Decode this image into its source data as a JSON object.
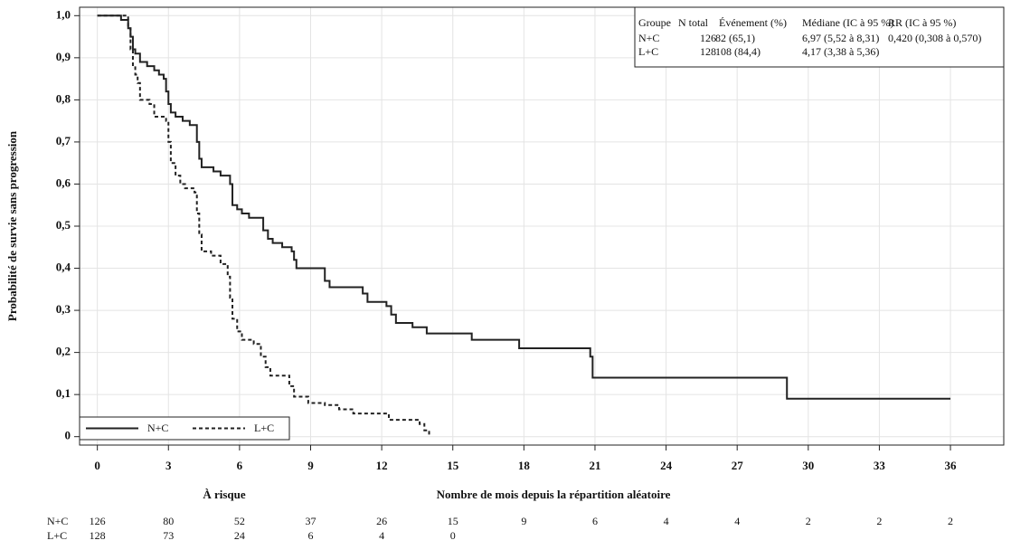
{
  "chart_data": {
    "type": "line",
    "step": "post",
    "ylabel": "Probabilité de survie sans progression",
    "xlabel": "Nombre de mois depuis la répartition aléatoire",
    "xlim": [
      -0.75,
      38.25
    ],
    "ylim": [
      -0.02,
      1.02
    ],
    "xticks": [
      0,
      3,
      6,
      9,
      12,
      15,
      18,
      21,
      24,
      27,
      30,
      33,
      36
    ],
    "yticks": [
      {
        "value": 1,
        "label": "1,0"
      },
      {
        "value": 0.9,
        "label": "0,9"
      },
      {
        "value": 0.8,
        "label": "0,8"
      },
      {
        "value": 0.7,
        "label": "0,7"
      },
      {
        "value": 0.6,
        "label": "0,6"
      },
      {
        "value": 0.5,
        "label": "0,5"
      },
      {
        "value": 0.4,
        "label": "0,4"
      },
      {
        "value": 0.3,
        "label": "0,3"
      },
      {
        "value": 0.2,
        "label": "0,2"
      },
      {
        "value": 0.1,
        "label": "0,1"
      },
      0
    ],
    "grid": true,
    "legend": "lower left",
    "series": [
      {
        "name": "N+C",
        "color": "#222222",
        "dash": "solid",
        "x": [
          0,
          1.0,
          1.3,
          1.4,
          1.5,
          1.6,
          1.8,
          2.1,
          2.4,
          2.6,
          2.8,
          2.9,
          3.0,
          3.1,
          3.3,
          3.6,
          3.9,
          4.2,
          4.3,
          4.4,
          4.9,
          5.2,
          5.6,
          5.7,
          5.9,
          6.1,
          6.4,
          7.0,
          7.2,
          7.4,
          7.8,
          8.2,
          8.3,
          8.4,
          9.6,
          9.8,
          11.2,
          11.4,
          12.2,
          12.4,
          12.6,
          13.3,
          13.9,
          15.8,
          17.8,
          20.8,
          20.9,
          29.1,
          36
        ],
        "values": [
          1,
          0.99,
          0.97,
          0.95,
          0.92,
          0.91,
          0.89,
          0.88,
          0.87,
          0.86,
          0.85,
          0.82,
          0.79,
          0.77,
          0.76,
          0.75,
          0.74,
          0.7,
          0.66,
          0.64,
          0.63,
          0.62,
          0.6,
          0.55,
          0.54,
          0.53,
          0.52,
          0.49,
          0.47,
          0.46,
          0.45,
          0.44,
          0.42,
          0.4,
          0.37,
          0.355,
          0.34,
          0.32,
          0.31,
          0.29,
          0.27,
          0.26,
          0.245,
          0.23,
          0.21,
          0.19,
          0.14,
          0.09,
          0.09
        ]
      },
      {
        "name": "L+C",
        "color": "#222222",
        "dash": "dashed",
        "x": [
          0,
          1.3,
          1.4,
          1.5,
          1.6,
          1.7,
          1.8,
          2.2,
          2.4,
          2.9,
          3.0,
          3.1,
          3.3,
          3.5,
          3.7,
          4.1,
          4.2,
          4.3,
          4.4,
          4.8,
          5.2,
          5.5,
          5.6,
          5.7,
          5.9,
          6.1,
          6.6,
          6.9,
          7.1,
          7.3,
          8.1,
          8.3,
          8.9,
          9.6,
          10.2,
          10.8,
          12.3,
          13.6,
          13.8,
          14.0
        ],
        "values": [
          1,
          0.97,
          0.92,
          0.88,
          0.86,
          0.84,
          0.8,
          0.79,
          0.76,
          0.75,
          0.7,
          0.65,
          0.62,
          0.6,
          0.59,
          0.58,
          0.53,
          0.48,
          0.44,
          0.43,
          0.41,
          0.38,
          0.33,
          0.28,
          0.25,
          0.23,
          0.22,
          0.19,
          0.165,
          0.145,
          0.12,
          0.095,
          0.08,
          0.075,
          0.065,
          0.055,
          0.04,
          0.03,
          0.015,
          0.005
        ]
      }
    ],
    "inset_table": {
      "columns": [
        "Groupe",
        "N total",
        "Événement (%)",
        "Médiane (IC à 95 %)",
        "RR (IC à 95 %)"
      ],
      "rows": [
        [
          "N+C",
          "126",
          "82 (65,1)",
          "6,97 (5,52 à 8,31)",
          "0,420 (0,308 à 0,570)"
        ],
        [
          "L+C",
          "128",
          "108 (84,4)",
          "4,17 (3,38 à 5,36)"
        ]
      ]
    },
    "at_risk": {
      "title": "À risque",
      "rows": [
        {
          "name": "N+C",
          "values": [
            126,
            80,
            52,
            37,
            26,
            15,
            9,
            6,
            4,
            4,
            2,
            2,
            2
          ]
        },
        {
          "name": "L+C",
          "values": [
            128,
            73,
            24,
            6,
            4,
            0
          ]
        }
      ]
    }
  }
}
